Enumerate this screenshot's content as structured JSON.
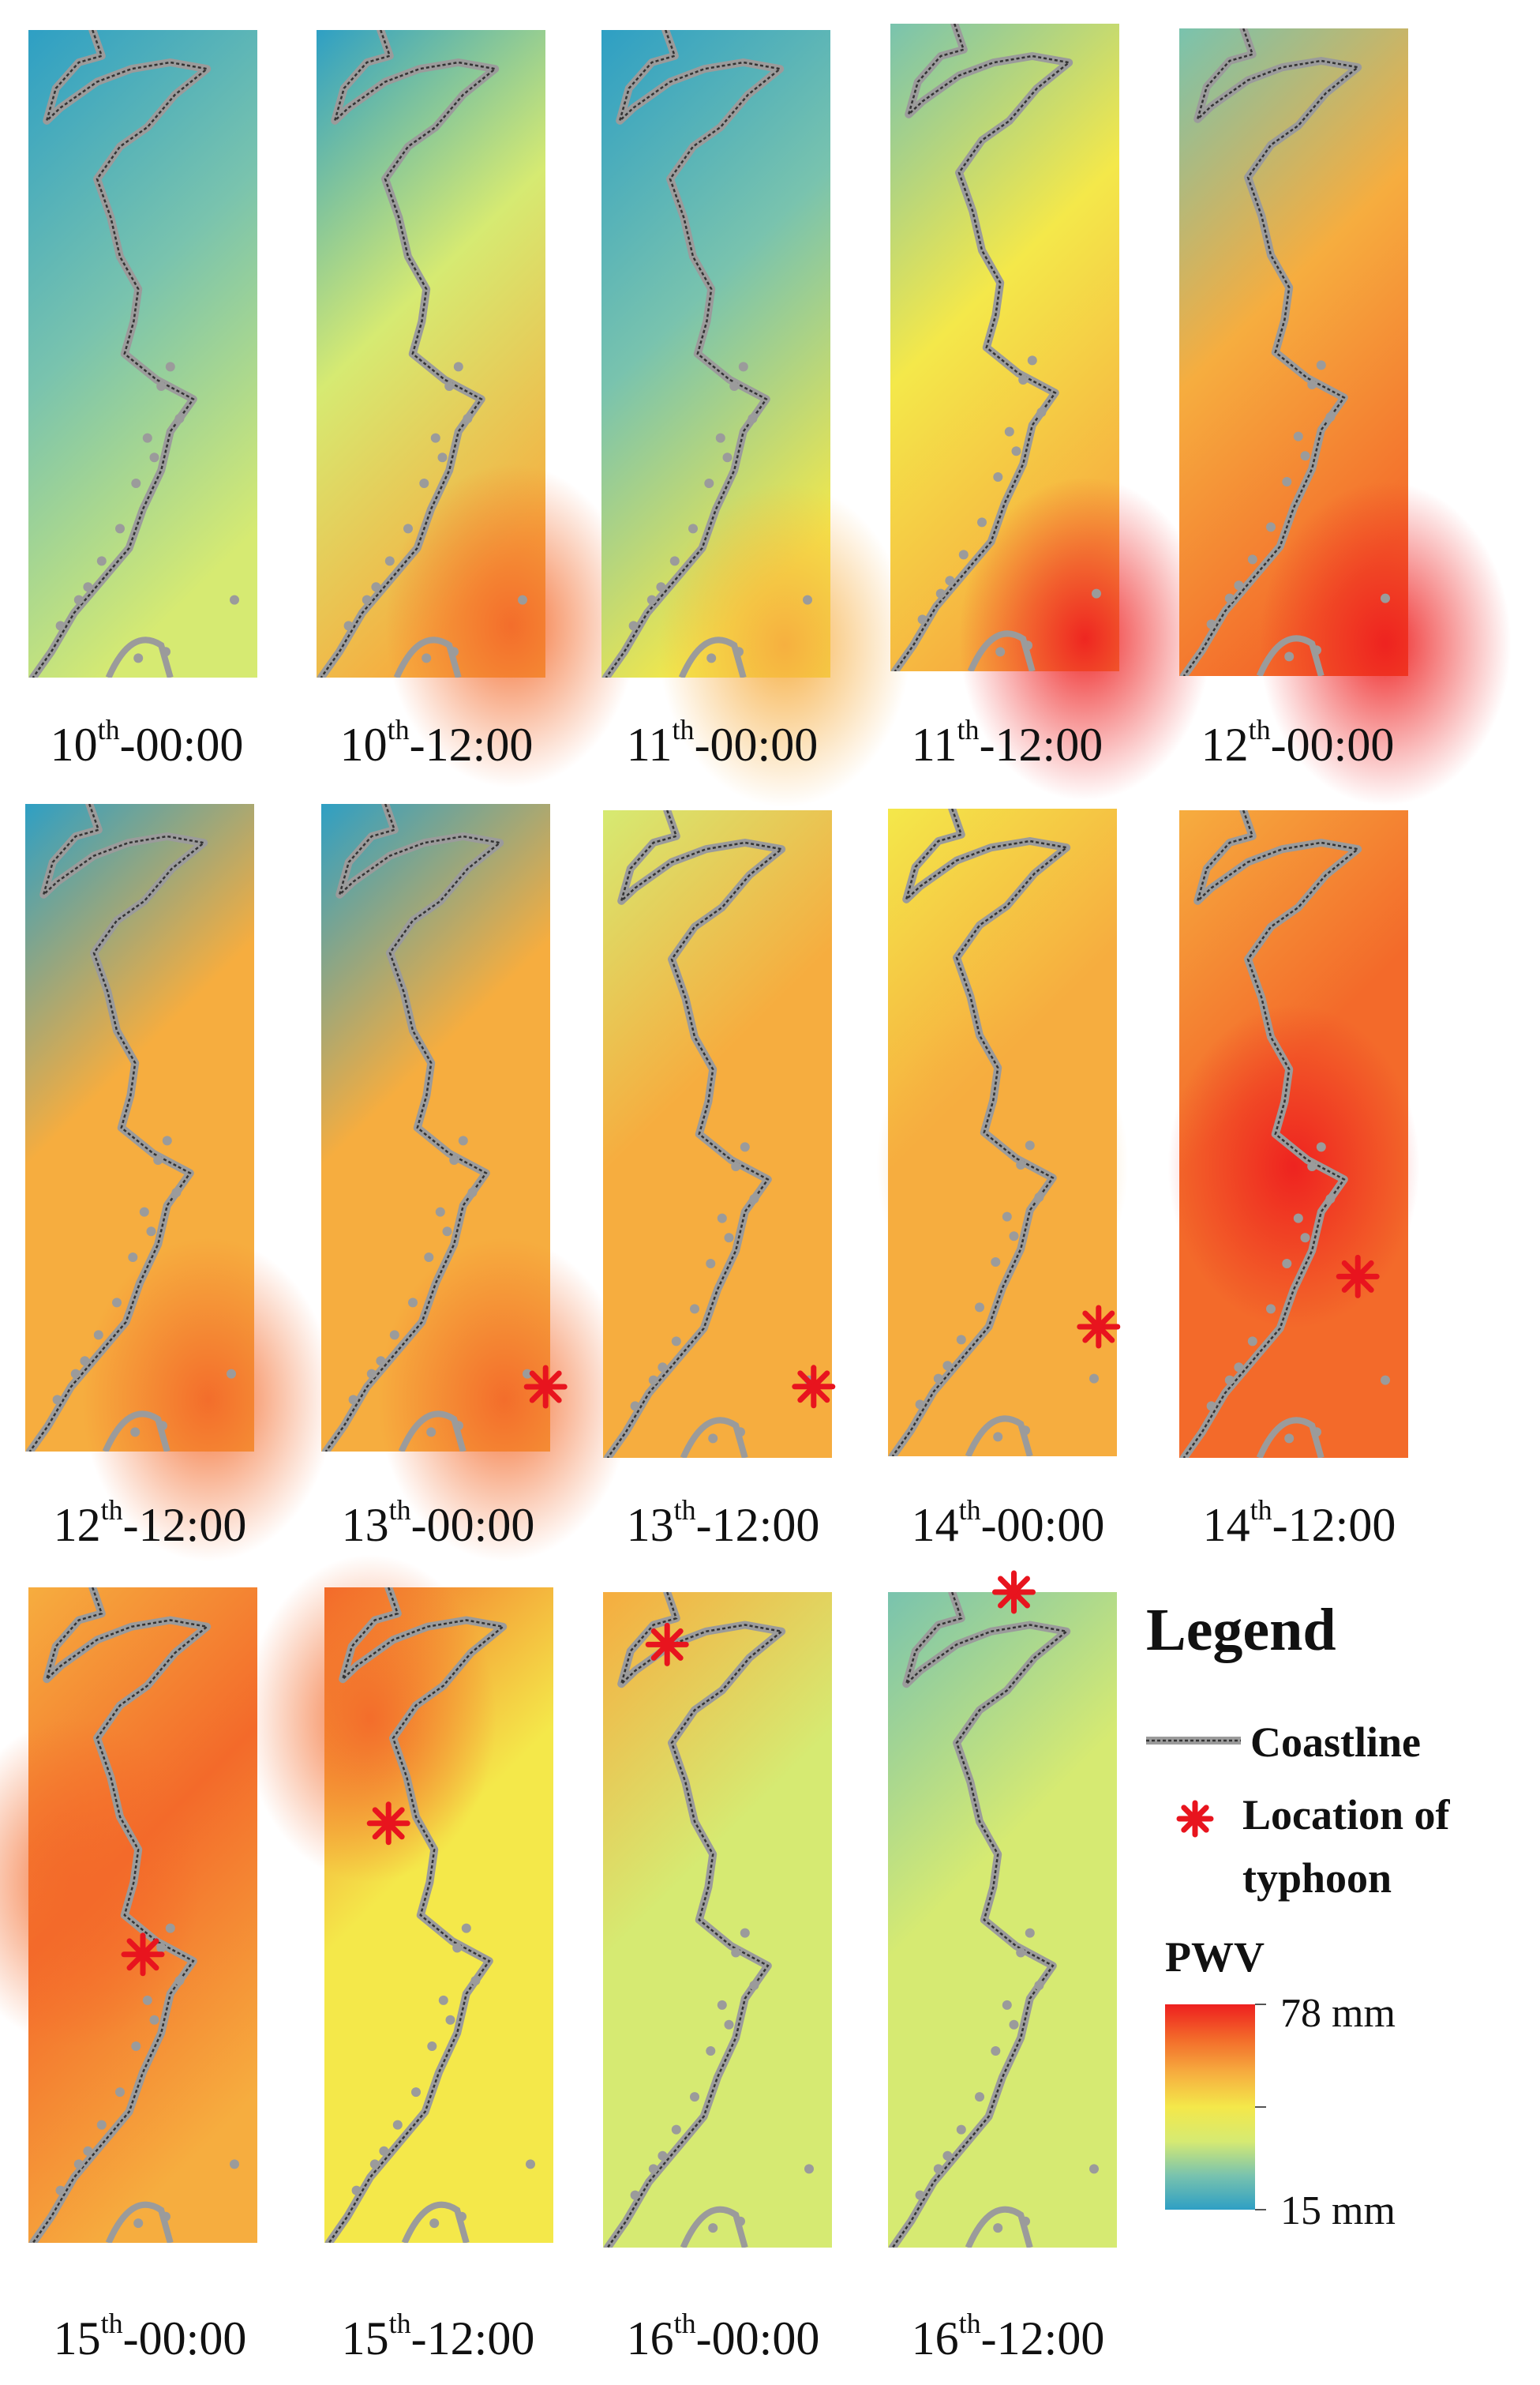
{
  "panels": [
    {
      "day": "10",
      "suffix": "th",
      "time": "-00:00",
      "typhoon": null
    },
    {
      "day": "10",
      "suffix": "th",
      "time": "-12:00",
      "typhoon": null
    },
    {
      "day": "11",
      "suffix": "th",
      "time": "-00:00",
      "typhoon": null
    },
    {
      "day": "11",
      "suffix": "th",
      "time": "-12:00",
      "typhoon": null
    },
    {
      "day": "12",
      "suffix": "th",
      "time": "-00:00",
      "typhoon": null
    },
    {
      "day": "12",
      "suffix": "th",
      "time": "-12:00",
      "typhoon": null
    },
    {
      "day": "13",
      "suffix": "th",
      "time": "-00:00",
      "typhoon": "bottom-right edge"
    },
    {
      "day": "13",
      "suffix": "th",
      "time": "-12:00",
      "typhoon": "bottom-right"
    },
    {
      "day": "14",
      "suffix": "th",
      "time": "-00:00",
      "typhoon": "lower-right"
    },
    {
      "day": "14",
      "suffix": "th",
      "time": "-12:00",
      "typhoon": "right-center"
    },
    {
      "day": "15",
      "suffix": "th",
      "time": "-00:00",
      "typhoon": "coast center"
    },
    {
      "day": "15",
      "suffix": "th",
      "time": "-12:00",
      "typhoon": "coast upper"
    },
    {
      "day": "16",
      "suffix": "th",
      "time": "-00:00",
      "typhoon": "coast north"
    },
    {
      "day": "16",
      "suffix": "th",
      "time": "-12:00",
      "typhoon": "top edge"
    }
  ],
  "legend": {
    "title": "Legend",
    "coastline_label": "Coastline",
    "typhoon_label_line1": "Location of",
    "typhoon_label_line2": "typhoon",
    "pwv_label": "PWV",
    "max_label": "78 mm",
    "min_label": "15 mm",
    "colors": {
      "scale": [
        "#2e9fc4",
        "#79c3ae",
        "#d6ea72",
        "#f4e84a",
        "#f6ad3f",
        "#f36a2a",
        "#ee1f1f"
      ],
      "coastline": "#9b9b9b",
      "typhoon_marker": "#e8141e"
    }
  }
}
